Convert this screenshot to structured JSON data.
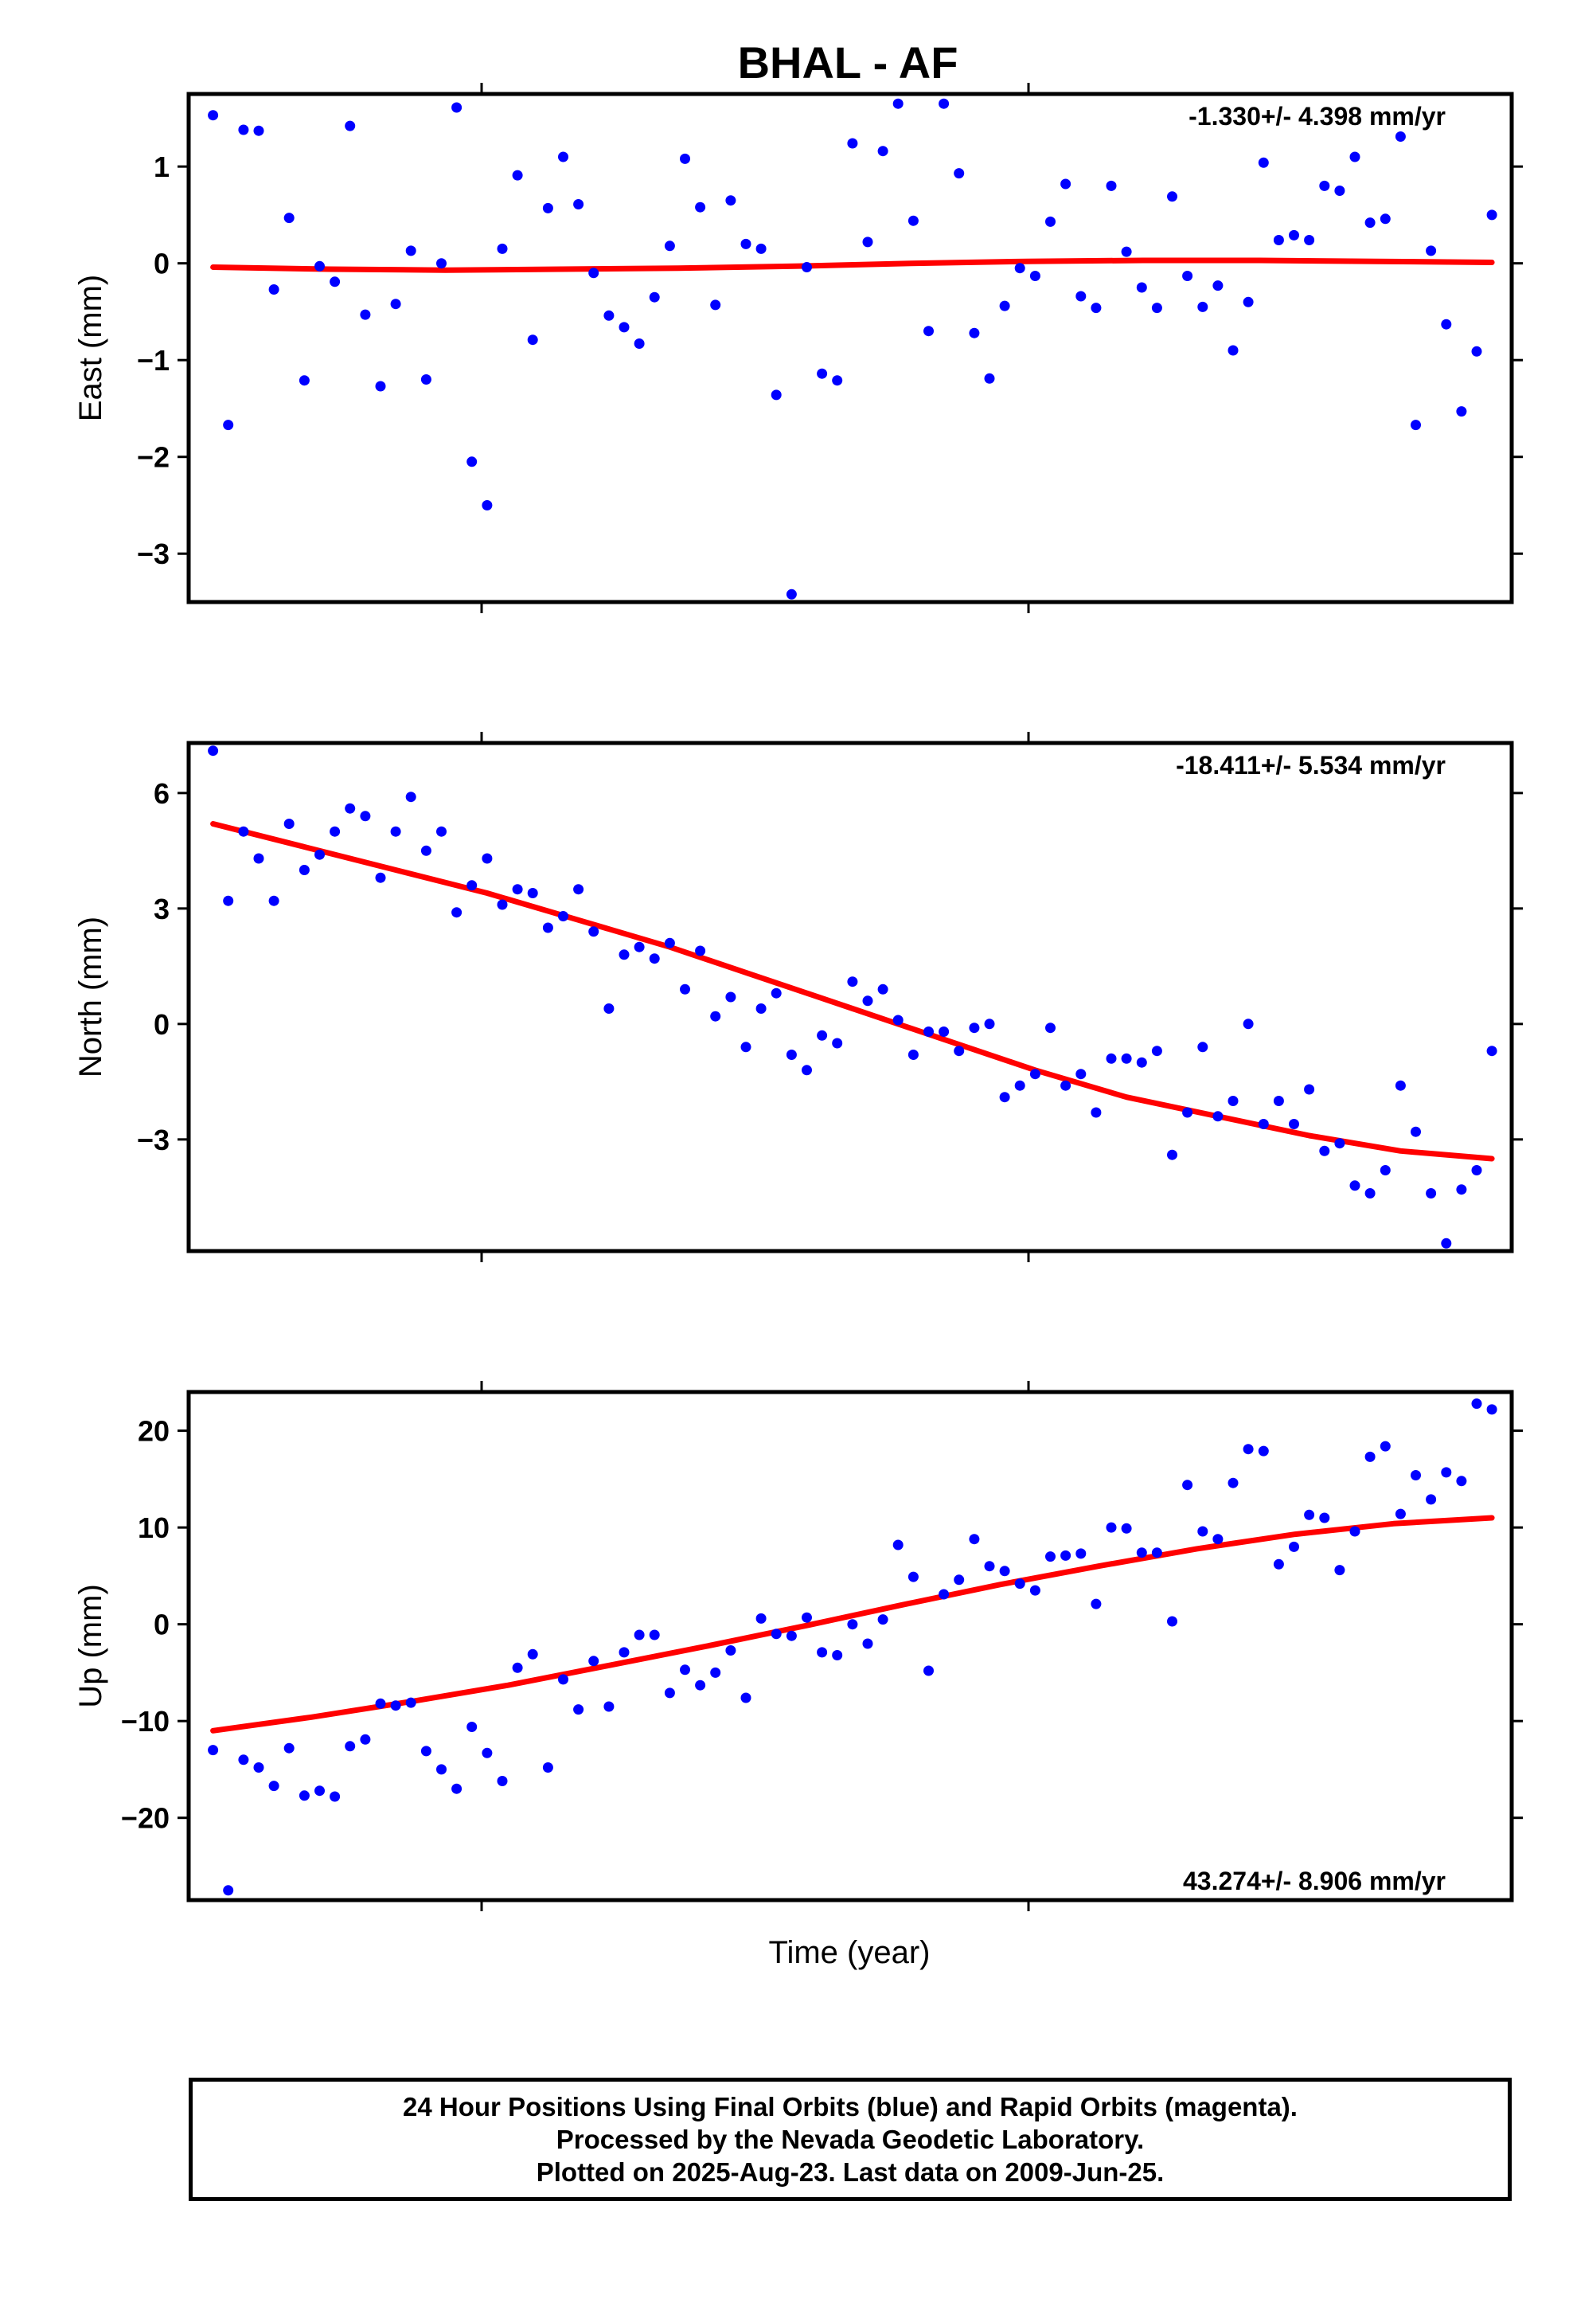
{
  "title": "BHAL - AF",
  "xlabel": "Time (year)",
  "footer": {
    "line1": "24 Hour Positions Using Final Orbits (blue) and Rapid Orbits (magenta).",
    "line2": "Processed by the Nevada Geodetic Laboratory.",
    "line3": "Plotted on 2025-Aug-23. Last data on 2009-Jun-25."
  },
  "colors": {
    "points": "#0000ff",
    "fit": "#ff0000",
    "frame": "#000000"
  },
  "chart_data": [
    {
      "type": "scatter",
      "component": "east",
      "ylabel": "East (mm)",
      "rate": "-1.330+/- 4.398 mm/yr",
      "ylim": [
        -3.5,
        1.75
      ],
      "yticks": [
        1,
        0,
        -1,
        -2,
        -3
      ],
      "ytick_labels": [
        "1",
        "0",
        "−1",
        "−2",
        "−3"
      ],
      "x": [
        0,
        1,
        2,
        3,
        4,
        5,
        6,
        7,
        8,
        9,
        10,
        11,
        12,
        13,
        14,
        15,
        16,
        17,
        18,
        19,
        20,
        21,
        22,
        23,
        24,
        25,
        26,
        27,
        28,
        29,
        30,
        31,
        32,
        33,
        34,
        35,
        36,
        37,
        38,
        39,
        40,
        41,
        42,
        43,
        44,
        45,
        46,
        47,
        48,
        49,
        50,
        51,
        52,
        53,
        54,
        55,
        56,
        57,
        58,
        59,
        60,
        61,
        62,
        63,
        64,
        65,
        66,
        67,
        68,
        69,
        70,
        71,
        72,
        73,
        74,
        75,
        76,
        77,
        78,
        79,
        80,
        81,
        82,
        83,
        84
      ],
      "y": [
        1.53,
        -1.67,
        1.38,
        1.37,
        -0.27,
        0.47,
        -1.21,
        -0.03,
        -0.19,
        1.42,
        -0.53,
        -1.27,
        -0.42,
        0.13,
        -1.2,
        0.0,
        1.61,
        -2.05,
        -2.5,
        0.15,
        0.91,
        -0.79,
        0.57,
        1.1,
        0.61,
        -0.1,
        -0.54,
        -0.66,
        -0.83,
        -0.35,
        0.18,
        1.08,
        0.58,
        -0.43,
        0.65,
        0.2,
        0.15,
        -1.36,
        -3.42,
        -0.04,
        -1.14,
        -1.21,
        1.24,
        0.22,
        1.16,
        1.65,
        0.44,
        -0.7,
        1.65,
        0.93,
        -0.72,
        -1.19,
        -0.44,
        -0.05,
        -0.13,
        0.43,
        0.82,
        -0.34,
        -0.46,
        0.8,
        0.12,
        -0.25,
        -0.46,
        0.69,
        -0.13,
        -0.45,
        -0.23,
        -0.9,
        -0.4,
        1.04,
        0.24,
        0.29,
        0.24,
        0.8,
        0.75,
        1.1,
        0.42,
        0.46,
        1.31,
        -1.67,
        0.13,
        -0.63,
        -1.53,
        -0.91,
        0.5
      ],
      "fit": [
        -0.04,
        -0.06,
        -0.07,
        -0.06,
        -0.05,
        -0.03,
        0.0,
        0.02,
        0.03,
        0.03,
        0.02,
        0.01
      ]
    },
    {
      "type": "scatter",
      "component": "north",
      "ylabel": "North (mm)",
      "rate": "-18.411+/- 5.534 mm/yr",
      "ylim": [
        -5.9,
        7.3
      ],
      "yticks": [
        6,
        3,
        0,
        -3
      ],
      "ytick_labels": [
        "6",
        "3",
        "0",
        "−3"
      ],
      "x": [
        0,
        1,
        2,
        3,
        4,
        5,
        6,
        7,
        8,
        9,
        10,
        11,
        12,
        13,
        14,
        15,
        16,
        17,
        18,
        19,
        20,
        21,
        22,
        23,
        24,
        25,
        26,
        27,
        28,
        29,
        30,
        31,
        32,
        33,
        34,
        35,
        36,
        37,
        38,
        39,
        40,
        41,
        42,
        43,
        44,
        45,
        46,
        47,
        48,
        49,
        50,
        51,
        52,
        53,
        54,
        55,
        56,
        57,
        58,
        59,
        60,
        61,
        62,
        63,
        64,
        65,
        66,
        67,
        68,
        69,
        70,
        71,
        72,
        73,
        74,
        75,
        76,
        77,
        78,
        79,
        80,
        81,
        82,
        83,
        84
      ],
      "y": [
        7.1,
        3.2,
        5.0,
        4.3,
        3.2,
        5.2,
        4.0,
        4.4,
        5.0,
        5.6,
        5.4,
        3.8,
        5.0,
        5.9,
        4.5,
        5.0,
        2.9,
        3.6,
        4.3,
        3.1,
        3.5,
        3.4,
        2.5,
        2.8,
        3.5,
        2.4,
        0.4,
        1.8,
        2.0,
        1.7,
        2.1,
        0.9,
        1.9,
        0.2,
        0.7,
        -0.6,
        0.4,
        0.8,
        -0.8,
        -1.2,
        -0.3,
        -0.5,
        1.1,
        0.6,
        0.9,
        0.1,
        -0.8,
        -0.2,
        -0.2,
        -0.7,
        -0.1,
        0.0,
        -1.9,
        -1.6,
        -1.3,
        -0.1,
        -1.6,
        -1.3,
        -2.3,
        -0.9,
        -0.9,
        -1.0,
        -0.7,
        -3.4,
        -2.3,
        -0.6,
        -2.4,
        -2.0,
        0.0,
        -2.6,
        -2.0,
        -2.6,
        -1.7,
        -3.3,
        -3.1,
        -4.2,
        -4.4,
        -3.8,
        -1.6,
        -2.8,
        -4.4,
        -5.7,
        -4.3,
        -3.8,
        -0.7
      ],
      "fit": [
        5.2,
        4.6,
        4.0,
        3.4,
        2.7,
        2.0,
        1.2,
        0.4,
        -0.4,
        -1.2,
        -1.9,
        -2.4,
        -2.9,
        -3.3,
        -3.5
      ]
    },
    {
      "type": "scatter",
      "component": "up",
      "ylabel": "Up (mm)",
      "rate": "43.274+/- 8.906 mm/yr",
      "ylim": [
        -28.5,
        24.0
      ],
      "yticks": [
        20,
        10,
        0,
        -10,
        -20
      ],
      "ytick_labels": [
        "20",
        "10",
        "0",
        "−10",
        "−20"
      ],
      "x": [
        0,
        1,
        2,
        3,
        4,
        5,
        6,
        7,
        8,
        9,
        10,
        11,
        12,
        13,
        14,
        15,
        16,
        17,
        18,
        19,
        20,
        21,
        22,
        23,
        24,
        25,
        26,
        27,
        28,
        29,
        30,
        31,
        32,
        33,
        34,
        35,
        36,
        37,
        38,
        39,
        40,
        41,
        42,
        43,
        44,
        45,
        46,
        47,
        48,
        49,
        50,
        51,
        52,
        53,
        54,
        55,
        56,
        57,
        58,
        59,
        60,
        61,
        62,
        63,
        64,
        65,
        66,
        67,
        68,
        69,
        70,
        71,
        72,
        73,
        74,
        75,
        76,
        77,
        78,
        79,
        80,
        81,
        82,
        83,
        84
      ],
      "y": [
        -13.0,
        -27.5,
        -14.0,
        -14.8,
        -16.7,
        -12.8,
        -17.7,
        -17.2,
        -17.8,
        -12.6,
        -11.9,
        -8.2,
        -8.4,
        -8.1,
        -13.1,
        -15.0,
        -17.0,
        -10.6,
        -13.3,
        -16.2,
        -4.5,
        -3.1,
        -14.8,
        -5.7,
        -8.8,
        -3.8,
        -8.5,
        -2.9,
        -1.1,
        -1.1,
        -7.1,
        -4.7,
        -6.3,
        -5.0,
        -2.7,
        -7.6,
        0.6,
        -1.0,
        -1.2,
        0.7,
        -2.9,
        -3.2,
        0.0,
        -2.0,
        0.5,
        8.2,
        4.9,
        -4.8,
        3.1,
        4.6,
        8.8,
        6.0,
        5.5,
        4.2,
        3.5,
        7.0,
        7.1,
        7.3,
        2.1,
        10.0,
        9.9,
        7.4,
        7.4,
        0.3,
        14.4,
        9.6,
        8.8,
        14.6,
        18.1,
        17.9,
        6.2,
        8.0,
        11.3,
        11.0,
        5.6,
        9.6,
        17.3,
        18.4,
        11.4,
        15.4,
        12.9,
        15.7,
        14.8,
        22.8,
        22.2
      ],
      "fit": [
        -11.0,
        -9.6,
        -8.0,
        -6.3,
        -4.3,
        -2.3,
        -0.2,
        2.0,
        4.1,
        6.0,
        7.8,
        9.3,
        10.4,
        11.0
      ]
    }
  ]
}
